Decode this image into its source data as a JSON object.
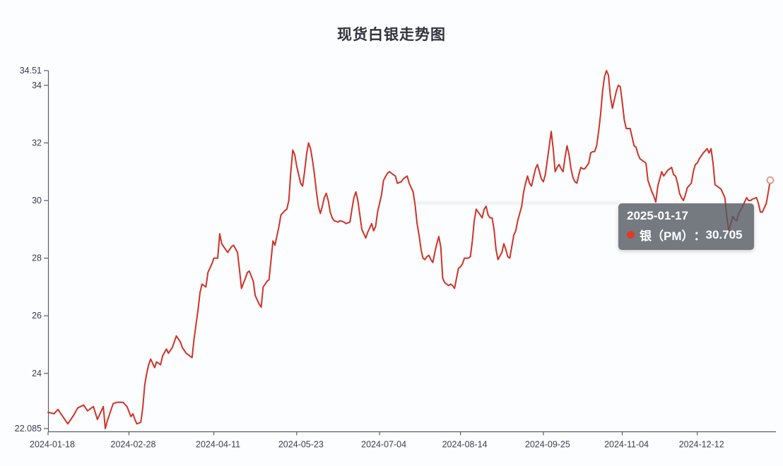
{
  "title": "现货白银走势图",
  "colors": {
    "line": "#cf3428",
    "axis": "#5a5e6e",
    "axis_label": "#3c3c50",
    "background": "#fcfdfe",
    "tooltip_bg": "rgba(83,89,96,0.80)",
    "tooltip_text": "#ffffff",
    "tooltip_dot": "#e0392c",
    "marker_fill": "#ffffff",
    "marker_stroke": "#dd9a90"
  },
  "tooltip": {
    "date": "2025-01-17",
    "series_label": "银（PM）",
    "separator": "：",
    "value": "30.705"
  },
  "chart_data": {
    "type": "line",
    "title": "现货白银走势图",
    "xlabel": "",
    "ylabel": "",
    "ylim": [
      22.085,
      34.51
    ],
    "x_range_days": 366,
    "grid": "off",
    "legend": "none",
    "y_ticks": [
      {
        "value": 34.51,
        "label": "34.51"
      },
      {
        "value": 34,
        "label": "34"
      },
      {
        "value": 32,
        "label": "32"
      },
      {
        "value": 30,
        "label": "30"
      },
      {
        "value": 28,
        "label": "28"
      },
      {
        "value": 26,
        "label": "26"
      },
      {
        "value": 24,
        "label": "24"
      },
      {
        "value": 22.085,
        "label": "22.085"
      }
    ],
    "x_ticks": [
      {
        "day": 0,
        "label": "2024-01-18"
      },
      {
        "day": 41,
        "label": "2024-02-28"
      },
      {
        "day": 84,
        "label": "2024-04-11"
      },
      {
        "day": 126,
        "label": "2024-05-23"
      },
      {
        "day": 168,
        "label": "2024-07-04"
      },
      {
        "day": 209,
        "label": "2024-08-14"
      },
      {
        "day": 251,
        "label": "2024-09-25"
      },
      {
        "day": 291,
        "label": "2024-11-04"
      },
      {
        "day": 329,
        "label": "2024-12-12"
      }
    ],
    "end_marker": {
      "day": 366,
      "value": 30.705
    },
    "series": [
      {
        "name": "银（PM）",
        "color": "#cf3428",
        "points": [
          [
            0,
            22.65
          ],
          [
            3,
            22.6
          ],
          [
            5,
            22.75
          ],
          [
            8,
            22.45
          ],
          [
            10,
            22.25
          ],
          [
            13,
            22.55
          ],
          [
            15,
            22.8
          ],
          [
            18,
            22.9
          ],
          [
            20,
            22.7
          ],
          [
            23,
            22.85
          ],
          [
            25,
            22.4
          ],
          [
            27,
            22.7
          ],
          [
            28,
            22.85
          ],
          [
            29,
            22.085
          ],
          [
            30,
            22.35
          ],
          [
            33,
            22.95
          ],
          [
            35,
            23.0
          ],
          [
            38,
            23.0
          ],
          [
            40,
            22.85
          ],
          [
            42,
            22.5
          ],
          [
            43,
            22.6
          ],
          [
            44,
            22.4
          ],
          [
            45,
            22.25
          ],
          [
            47,
            22.3
          ],
          [
            48,
            22.8
          ],
          [
            49,
            23.6
          ],
          [
            50,
            24.0
          ],
          [
            51,
            24.3
          ],
          [
            52,
            24.5
          ],
          [
            54,
            24.2
          ],
          [
            55,
            24.4
          ],
          [
            57,
            24.3
          ],
          [
            58,
            24.6
          ],
          [
            60,
            24.85
          ],
          [
            61,
            24.7
          ],
          [
            63,
            24.9
          ],
          [
            64,
            25.1
          ],
          [
            65,
            25.3
          ],
          [
            67,
            25.1
          ],
          [
            68,
            24.9
          ],
          [
            70,
            24.7
          ],
          [
            72,
            24.6
          ],
          [
            73,
            24.55
          ],
          [
            74,
            25.2
          ],
          [
            76,
            26.2
          ],
          [
            77,
            26.8
          ],
          [
            78,
            27.1
          ],
          [
            80,
            27.0
          ],
          [
            81,
            27.5
          ],
          [
            83,
            27.8
          ],
          [
            84,
            28.0
          ],
          [
            86,
            28.0
          ],
          [
            87,
            28.85
          ],
          [
            88,
            28.5
          ],
          [
            90,
            28.3
          ],
          [
            91,
            28.2
          ],
          [
            93,
            28.4
          ],
          [
            94,
            28.45
          ],
          [
            96,
            28.2
          ],
          [
            97,
            27.6
          ],
          [
            98,
            26.95
          ],
          [
            100,
            27.3
          ],
          [
            101,
            27.5
          ],
          [
            102,
            27.55
          ],
          [
            104,
            27.2
          ],
          [
            105,
            26.7
          ],
          [
            107,
            26.4
          ],
          [
            108,
            26.3
          ],
          [
            109,
            27.0
          ],
          [
            111,
            27.2
          ],
          [
            112,
            27.25
          ],
          [
            114,
            28.6
          ],
          [
            115,
            28.45
          ],
          [
            117,
            29.1
          ],
          [
            118,
            29.5
          ],
          [
            120,
            29.65
          ],
          [
            121,
            29.7
          ],
          [
            122,
            30.0
          ],
          [
            123,
            31.0
          ],
          [
            124,
            31.75
          ],
          [
            125,
            31.6
          ],
          [
            126,
            31.2
          ],
          [
            128,
            30.6
          ],
          [
            129,
            30.5
          ],
          [
            130,
            31.0
          ],
          [
            131,
            31.6
          ],
          [
            132,
            32.0
          ],
          [
            133,
            31.8
          ],
          [
            134,
            31.4
          ],
          [
            135,
            30.9
          ],
          [
            136,
            30.3
          ],
          [
            137,
            29.8
          ],
          [
            138,
            29.55
          ],
          [
            139,
            29.8
          ],
          [
            140,
            30.1
          ],
          [
            141,
            30.25
          ],
          [
            142,
            30.0
          ],
          [
            143,
            29.6
          ],
          [
            144,
            29.4
          ],
          [
            145,
            29.3
          ],
          [
            147,
            29.25
          ],
          [
            148,
            29.3
          ],
          [
            150,
            29.25
          ],
          [
            151,
            29.2
          ],
          [
            153,
            29.25
          ],
          [
            154,
            29.7
          ],
          [
            155,
            30.1
          ],
          [
            156,
            30.3
          ],
          [
            157,
            30.0
          ],
          [
            158,
            29.5
          ],
          [
            159,
            29.0
          ],
          [
            161,
            28.7
          ],
          [
            162,
            28.9
          ],
          [
            164,
            29.2
          ],
          [
            165,
            28.95
          ],
          [
            166,
            29.1
          ],
          [
            167,
            29.6
          ],
          [
            169,
            30.2
          ],
          [
            170,
            30.7
          ],
          [
            172,
            30.95
          ],
          [
            173,
            31.0
          ],
          [
            174,
            30.95
          ],
          [
            176,
            30.85
          ],
          [
            177,
            30.6
          ],
          [
            179,
            30.65
          ],
          [
            180,
            30.75
          ],
          [
            182,
            30.85
          ],
          [
            183,
            30.6
          ],
          [
            185,
            30.3
          ],
          [
            186,
            29.85
          ],
          [
            187,
            29.2
          ],
          [
            188,
            28.8
          ],
          [
            189,
            28.3
          ],
          [
            190,
            28.0
          ],
          [
            191,
            27.95
          ],
          [
            192,
            28.05
          ],
          [
            193,
            28.1
          ],
          [
            194,
            27.95
          ],
          [
            195,
            27.85
          ],
          [
            196,
            28.2
          ],
          [
            197,
            28.5
          ],
          [
            198,
            28.75
          ],
          [
            199,
            28.4
          ],
          [
            200,
            27.3
          ],
          [
            201,
            27.15
          ],
          [
            203,
            27.05
          ],
          [
            204,
            27.1
          ],
          [
            205,
            27.05
          ],
          [
            206,
            26.95
          ],
          [
            207,
            27.3
          ],
          [
            208,
            27.65
          ],
          [
            209,
            27.7
          ],
          [
            210,
            27.8
          ],
          [
            211,
            28.0
          ],
          [
            213,
            28.0
          ],
          [
            214,
            28.05
          ],
          [
            215,
            28.6
          ],
          [
            216,
            29.3
          ],
          [
            217,
            29.7
          ],
          [
            218,
            29.6
          ],
          [
            219,
            29.5
          ],
          [
            220,
            29.4
          ],
          [
            221,
            29.7
          ],
          [
            222,
            29.8
          ],
          [
            223,
            29.5
          ],
          [
            224,
            29.4
          ],
          [
            225,
            29.4
          ],
          [
            226,
            29.0
          ],
          [
            227,
            28.3
          ],
          [
            228,
            27.95
          ],
          [
            230,
            28.2
          ],
          [
            231,
            28.5
          ],
          [
            232,
            28.3
          ],
          [
            233,
            28.05
          ],
          [
            234,
            28.0
          ],
          [
            235,
            28.4
          ],
          [
            236,
            28.8
          ],
          [
            237,
            28.95
          ],
          [
            238,
            29.3
          ],
          [
            240,
            29.8
          ],
          [
            241,
            30.3
          ],
          [
            242,
            30.6
          ],
          [
            243,
            30.85
          ],
          [
            244,
            30.6
          ],
          [
            245,
            30.5
          ],
          [
            246,
            30.8
          ],
          [
            247,
            31.1
          ],
          [
            248,
            31.25
          ],
          [
            249,
            31.0
          ],
          [
            250,
            30.75
          ],
          [
            251,
            30.65
          ],
          [
            252,
            30.9
          ],
          [
            253,
            31.4
          ],
          [
            254,
            31.9
          ],
          [
            255,
            32.4
          ],
          [
            256,
            31.8
          ],
          [
            257,
            31.0
          ],
          [
            258,
            31.15
          ],
          [
            259,
            31.25
          ],
          [
            260,
            31.1
          ],
          [
            261,
            31.0
          ],
          [
            262,
            31.5
          ],
          [
            263,
            31.9
          ],
          [
            264,
            31.6
          ],
          [
            265,
            31.1
          ],
          [
            266,
            30.8
          ],
          [
            267,
            30.65
          ],
          [
            268,
            30.6
          ],
          [
            269,
            30.9
          ],
          [
            270,
            31.15
          ],
          [
            271,
            31.1
          ],
          [
            272,
            31.1
          ],
          [
            274,
            31.3
          ],
          [
            275,
            31.65
          ],
          [
            276,
            31.7
          ],
          [
            277,
            31.7
          ],
          [
            278,
            31.9
          ],
          [
            279,
            32.4
          ],
          [
            280,
            33.0
          ],
          [
            281,
            33.8
          ],
          [
            282,
            34.3
          ],
          [
            283,
            34.51
          ],
          [
            284,
            34.35
          ],
          [
            285,
            33.6
          ],
          [
            286,
            33.2
          ],
          [
            287,
            33.5
          ],
          [
            288,
            33.8
          ],
          [
            289,
            34.0
          ],
          [
            290,
            33.95
          ],
          [
            291,
            33.4
          ],
          [
            292,
            32.8
          ],
          [
            293,
            32.5
          ],
          [
            294,
            32.5
          ],
          [
            295,
            32.5
          ],
          [
            296,
            32.2
          ],
          [
            297,
            31.9
          ],
          [
            298,
            31.85
          ],
          [
            299,
            31.6
          ],
          [
            300,
            31.45
          ],
          [
            301,
            31.4
          ],
          [
            303,
            31.3
          ],
          [
            304,
            30.7
          ],
          [
            305,
            30.5
          ],
          [
            306,
            30.3
          ],
          [
            307,
            30.15
          ],
          [
            308,
            29.95
          ],
          [
            309,
            30.5
          ],
          [
            311,
            31.0
          ],
          [
            312,
            30.85
          ],
          [
            313,
            30.95
          ],
          [
            314,
            31.05
          ],
          [
            316,
            31.15
          ],
          [
            317,
            30.9
          ],
          [
            318,
            30.85
          ],
          [
            319,
            30.6
          ],
          [
            320,
            30.25
          ],
          [
            321,
            30.1
          ],
          [
            322,
            30.0
          ],
          [
            323,
            30.2
          ],
          [
            324,
            30.45
          ],
          [
            326,
            30.6
          ],
          [
            327,
            31.0
          ],
          [
            328,
            31.25
          ],
          [
            329,
            31.3
          ],
          [
            330,
            31.45
          ],
          [
            331,
            31.55
          ],
          [
            332,
            31.65
          ],
          [
            334,
            31.8
          ],
          [
            335,
            31.65
          ],
          [
            336,
            31.8
          ],
          [
            337,
            31.3
          ],
          [
            338,
            30.55
          ],
          [
            340,
            30.45
          ],
          [
            341,
            30.4
          ],
          [
            342,
            30.25
          ],
          [
            343,
            30.1
          ],
          [
            344,
            29.4
          ],
          [
            345,
            28.95
          ],
          [
            346,
            29.2
          ],
          [
            347,
            29.45
          ],
          [
            348,
            29.35
          ],
          [
            349,
            29.3
          ],
          [
            350,
            29.55
          ],
          [
            352,
            29.8
          ],
          [
            353,
            29.95
          ],
          [
            354,
            30.1
          ],
          [
            355,
            30.0
          ],
          [
            356,
            30.0
          ],
          [
            357,
            30.05
          ],
          [
            359,
            30.1
          ],
          [
            360,
            29.9
          ],
          [
            361,
            29.6
          ],
          [
            362,
            29.6
          ],
          [
            364,
            29.9
          ],
          [
            365,
            30.3
          ],
          [
            366,
            30.705
          ]
        ]
      }
    ]
  }
}
